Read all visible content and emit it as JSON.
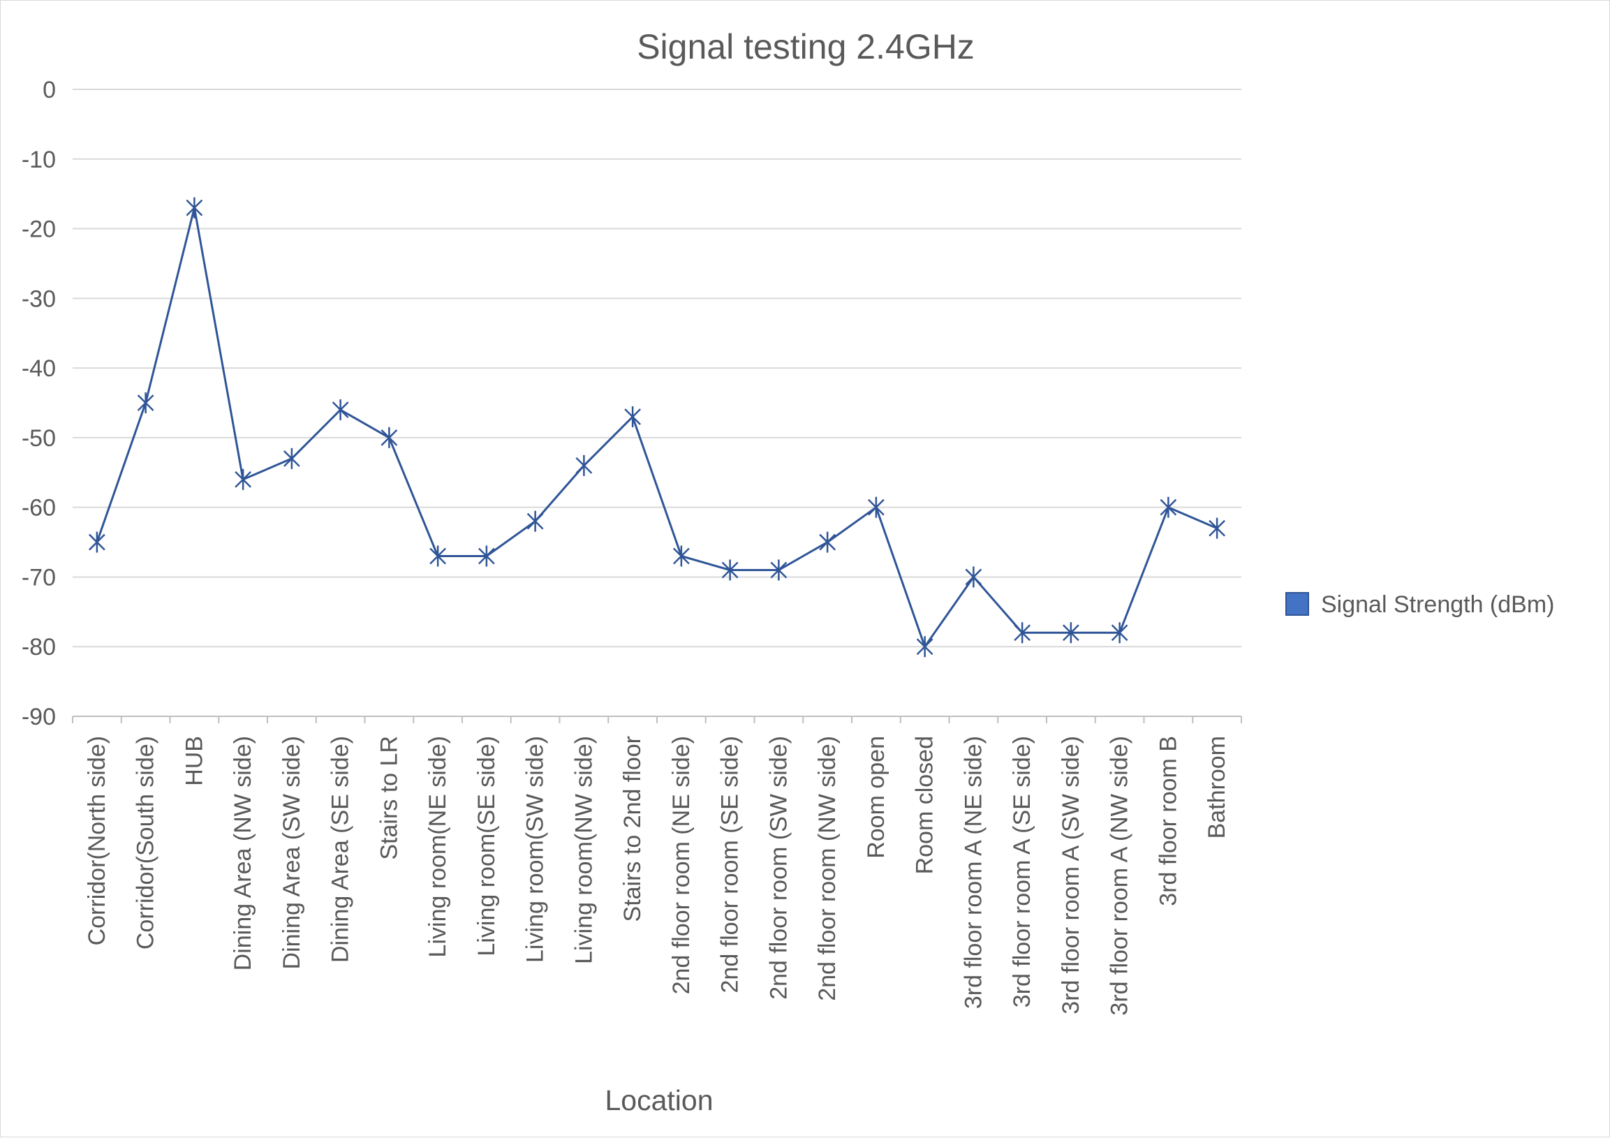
{
  "chart_data": {
    "type": "line",
    "title": "Signal testing 2.4GHz",
    "xlabel": "Location",
    "ylabel": "",
    "ylim": [
      -90,
      0
    ],
    "ytick_step": 10,
    "grid": "horizontal",
    "legend_position": "right",
    "categories": [
      "Corridor(North side)",
      "Corridor(South side)",
      "HUB",
      "Dining Area (NW side)",
      "Dining Area (SW side)",
      "Dining Area (SE side)",
      "Stairs to LR",
      "Living room(NE side)",
      "Living room(SE side)",
      "Living room(SW side)",
      "Living room(NW side)",
      "Stairs to 2nd floor",
      "2nd floor room (NE side)",
      "2nd floor room (SE side)",
      "2nd floor room (SW side)",
      "2nd floor room (NW side)",
      "Room open",
      "Room closed",
      "3rd floor room A (NE side)",
      "3rd floor room A (SE side)",
      "3rd floor room A (SW side)",
      "3rd floor room A (NW side)",
      "3rd floor room B",
      "Bathroom"
    ],
    "series": [
      {
        "name": "Signal Strength (dBm)",
        "color": "#2f5597",
        "legend_color": "#4472c4",
        "marker": "star",
        "values": [
          -65,
          -45,
          -17,
          -56,
          -53,
          -46,
          -50,
          -67,
          -67,
          -62,
          -54,
          -47,
          -67,
          -69,
          -69,
          -65,
          -60,
          -80,
          -70,
          -78,
          -78,
          -78,
          -60,
          -63
        ]
      }
    ]
  }
}
